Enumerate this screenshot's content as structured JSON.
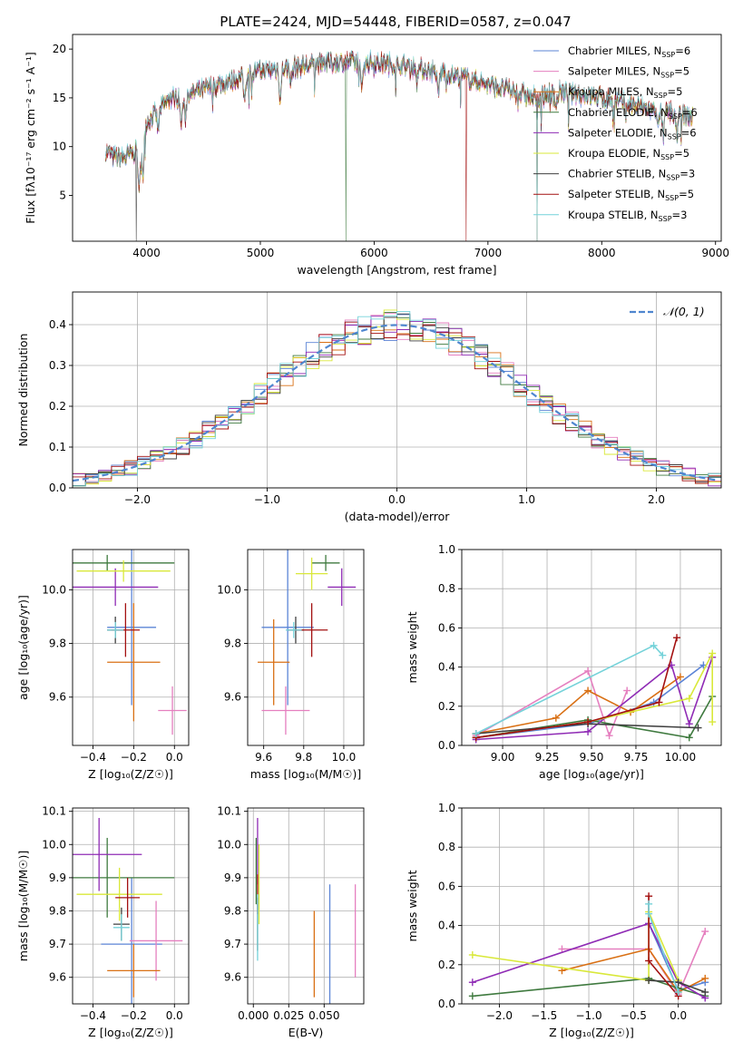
{
  "figure_title": "PLATE=2424, MJD=54448, FIBERID=0587, z=0.047",
  "colors": [
    "#5b84d6",
    "#e57fbf",
    "#d97014",
    "#3f7a3f",
    "#8f2bb5",
    "#d9e83a",
    "#404040",
    "#a31010",
    "#74d2d9"
  ],
  "chart_data": [
    {
      "id": "spectrum",
      "type": "line",
      "title": "",
      "xlabel": "wavelength [Angstrom, rest frame]",
      "ylabel": "Flux [fλ10⁻¹⁷ erg cm⁻² s⁻¹ A⁻¹]",
      "xlim": [
        3350,
        9050
      ],
      "ylim": [
        0.3,
        21.5
      ],
      "xticks": [
        4000,
        5000,
        6000,
        7000,
        8000,
        9000
      ],
      "yticks": [
        5,
        10,
        15,
        20
      ],
      "grid": false,
      "legend_position": "upper-right",
      "continuum_x": [
        3640,
        3700,
        3800,
        3900,
        4000,
        4200,
        4400,
        4600,
        4800,
        5000,
        5200,
        5400,
        5600,
        5800,
        6000,
        6200,
        6400,
        6600,
        6800,
        7000,
        7200,
        7400,
        7600,
        7800,
        8000,
        8200,
        8400,
        8600,
        8800
      ],
      "continuum_y": [
        9.5,
        9.0,
        8.8,
        9.5,
        12.5,
        14.8,
        15.5,
        16.2,
        17.0,
        17.8,
        18.0,
        18.3,
        18.6,
        18.7,
        18.6,
        18.4,
        18.0,
        17.6,
        17.1,
        16.3,
        15.7,
        15.0,
        15.6,
        15.4,
        15.0,
        14.4,
        13.9,
        13.5,
        13.0
      ],
      "series": [
        {
          "name": "Chabrier MILES, N",
          "sub": "SSP",
          "suffix": "=6"
        },
        {
          "name": "Salpeter MILES, N",
          "sub": "SSP",
          "suffix": "=5"
        },
        {
          "name": "Kroupa MILES, N",
          "sub": "SSP",
          "suffix": "=5"
        },
        {
          "name": "Chabrier ELODIE, N",
          "sub": "SSP",
          "suffix": "=6"
        },
        {
          "name": "Salpeter ELODIE, N",
          "sub": "SSP",
          "suffix": "=6"
        },
        {
          "name": "Kroupa ELODIE, N",
          "sub": "SSP",
          "suffix": "=5"
        },
        {
          "name": "Chabrier STELIB, N",
          "sub": "SSP",
          "suffix": "=3"
        },
        {
          "name": "Salpeter STELIB, N",
          "sub": "SSP",
          "suffix": "=5"
        },
        {
          "name": "Kroupa STELIB, N",
          "sub": "SSP",
          "suffix": "=3"
        }
      ]
    },
    {
      "id": "residuals",
      "type": "step",
      "xlabel": "(data-model)/error",
      "ylabel": "Normed distribution",
      "xlim": [
        -2.5,
        2.5
      ],
      "ylim": [
        0,
        0.48
      ],
      "xticks": [
        -2,
        -1,
        0,
        1,
        2
      ],
      "yticks": [
        0.0,
        0.1,
        0.2,
        0.3,
        0.4
      ],
      "grid": true,
      "legend_position": "upper-right",
      "legend": "𝒩(0, 1)",
      "bin_width": 0.1
    },
    {
      "id": "age_vs_Z",
      "type": "errorbar",
      "xlabel": "Z [log₁₀(Z/Z☉)]",
      "ylabel": "age  [log₁₀(age/yr)]",
      "xlim": [
        -0.5,
        0.07
      ],
      "ylim": [
        9.42,
        10.15
      ],
      "xticks": [
        -0.4,
        -0.2,
        0.0
      ],
      "yticks": [
        9.6,
        9.8,
        10.0
      ],
      "grid": true,
      "points": [
        {
          "x": -0.21,
          "xerr": 0.12,
          "y": 9.86,
          "yerr": 0.29
        },
        {
          "x": -0.01,
          "xerr": 0.07,
          "y": 9.55,
          "yerr": 0.09
        },
        {
          "x": -0.2,
          "xerr": 0.13,
          "y": 9.73,
          "yerr": 0.22
        },
        {
          "x": -0.33,
          "xerr": 0.33,
          "y": 10.1,
          "yerr": 0.03
        },
        {
          "x": -0.29,
          "xerr": 0.21,
          "y": 10.01,
          "yerr": 0.07
        },
        {
          "x": -0.25,
          "xerr": 0.23,
          "y": 10.07,
          "yerr": 0.04
        },
        {
          "x": -0.29,
          "xerr": 0.04,
          "y": 9.85,
          "yerr": 0.05
        },
        {
          "x": -0.24,
          "xerr": 0.07,
          "y": 9.85,
          "yerr": 0.1
        },
        {
          "x": -0.29,
          "xerr": 0.04,
          "y": 9.85,
          "yerr": 0.03
        }
      ]
    },
    {
      "id": "age_vs_mass",
      "type": "errorbar",
      "xlabel": "mass [log₁₀(M/M☉)]",
      "ylabel": "",
      "xlim": [
        9.52,
        10.1
      ],
      "ylim": [
        9.42,
        10.15
      ],
      "xticks": [
        9.6,
        9.8,
        10.0
      ],
      "yticks": [
        9.6,
        9.8,
        10.0
      ],
      "grid": true,
      "points": [
        {
          "x": 9.72,
          "xerr": 0.13,
          "y": 9.86,
          "yerr": 0.29
        },
        {
          "x": 9.71,
          "xerr": 0.12,
          "y": 9.55,
          "yerr": 0.09
        },
        {
          "x": 9.65,
          "xerr": 0.08,
          "y": 9.73,
          "yerr": 0.16
        },
        {
          "x": 9.91,
          "xerr": 0.07,
          "y": 10.1,
          "yerr": 0.03
        },
        {
          "x": 9.99,
          "xerr": 0.07,
          "y": 10.01,
          "yerr": 0.07
        },
        {
          "x": 9.84,
          "xerr": 0.08,
          "y": 10.06,
          "yerr": 0.06
        },
        {
          "x": 9.76,
          "xerr": 0.04,
          "y": 9.85,
          "yerr": 0.05
        },
        {
          "x": 9.84,
          "xerr": 0.08,
          "y": 9.85,
          "yerr": 0.1
        },
        {
          "x": 9.75,
          "xerr": 0.04,
          "y": 9.85,
          "yerr": 0.03
        }
      ]
    },
    {
      "id": "weight_vs_age",
      "type": "line",
      "xlabel": "age  [log₁₀(age/yr)]",
      "ylabel": "mass weight",
      "xlim": [
        8.77,
        10.23
      ],
      "ylim": [
        0,
        1
      ],
      "xticks": [
        9.0,
        9.25,
        9.5,
        9.75,
        10.0
      ],
      "yticks": [
        0.0,
        0.2,
        0.4,
        0.6,
        0.8,
        1.0
      ],
      "grid": true,
      "series": [
        {
          "x": [
            8.85,
            9.48,
            9.85,
            10.13
          ],
          "y": [
            0.04,
            0.11,
            0.22,
            0.41
          ]
        },
        {
          "x": [
            8.85,
            9.48,
            9.6,
            9.7
          ],
          "y": [
            0.05,
            0.38,
            0.05,
            0.28
          ]
        },
        {
          "x": [
            8.85,
            9.3,
            9.48,
            9.72,
            10.0
          ],
          "y": [
            0.06,
            0.14,
            0.28,
            0.17,
            0.35
          ]
        },
        {
          "x": [
            8.85,
            9.48,
            10.05,
            10.18
          ],
          "y": [
            0.04,
            0.13,
            0.04,
            0.25
          ]
        },
        {
          "x": [
            8.85,
            9.48,
            9.95,
            10.05,
            10.18
          ],
          "y": [
            0.03,
            0.07,
            0.41,
            0.11,
            0.45
          ]
        },
        {
          "x": [
            8.85,
            9.48,
            10.05,
            10.18,
            10.18
          ],
          "y": [
            0.04,
            0.12,
            0.24,
            0.47,
            0.12
          ]
        },
        {
          "x": [
            8.85,
            9.48,
            10.1
          ],
          "y": [
            0.06,
            0.11,
            0.09
          ]
        },
        {
          "x": [
            8.85,
            9.48,
            9.88,
            9.98
          ],
          "y": [
            0.04,
            0.12,
            0.22,
            0.55
          ]
        },
        {
          "x": [
            8.85,
            9.85,
            9.9
          ],
          "y": [
            0.06,
            0.51,
            0.46
          ]
        }
      ]
    },
    {
      "id": "mass_vs_Z",
      "type": "errorbar",
      "xlabel": "Z [log₁₀(Z/Z☉)]",
      "ylabel": "mass [log₁₀(M/M☉)]",
      "xlim": [
        -0.5,
        0.07
      ],
      "ylim": [
        9.52,
        10.11
      ],
      "xticks": [
        -0.4,
        -0.2,
        0.0
      ],
      "yticks": [
        9.6,
        9.7,
        9.8,
        9.9,
        10.0,
        10.1
      ],
      "grid": true,
      "points": [
        {
          "x": -0.21,
          "xerr": 0.15,
          "y": 9.7,
          "yerr": 0.2
        },
        {
          "x": -0.09,
          "xerr": 0.13,
          "y": 9.71,
          "yerr": 0.12
        },
        {
          "x": -0.2,
          "xerr": 0.13,
          "y": 9.62,
          "yerr": 0.08
        },
        {
          "x": -0.33,
          "xerr": 0.33,
          "y": 9.9,
          "yerr": 0.12
        },
        {
          "x": -0.37,
          "xerr": 0.21,
          "y": 9.97,
          "yerr": 0.11
        },
        {
          "x": -0.27,
          "xerr": 0.21,
          "y": 9.85,
          "yerr": 0.08
        },
        {
          "x": -0.26,
          "xerr": 0.04,
          "y": 9.76,
          "yerr": 0.05
        },
        {
          "x": -0.23,
          "xerr": 0.06,
          "y": 9.84,
          "yerr": 0.06
        },
        {
          "x": -0.26,
          "xerr": 0.04,
          "y": 9.75,
          "yerr": 0.04
        }
      ]
    },
    {
      "id": "mass_vs_ebv",
      "type": "errorbar",
      "xlabel": "E(B-V)",
      "ylabel": "",
      "xlim": [
        -0.004,
        0.078
      ],
      "ylim": [
        9.52,
        10.11
      ],
      "xticks": [
        0.0,
        0.025,
        0.05
      ],
      "yticks": [
        9.6,
        9.7,
        9.8,
        9.9,
        10.0,
        10.1
      ],
      "grid": true,
      "points": [
        {
          "x": 0.054,
          "xerr": 0.0,
          "y": 9.7,
          "yerr": 0.18
        },
        {
          "x": 0.072,
          "xerr": 0.0,
          "y": 9.74,
          "yerr": 0.14
        },
        {
          "x": 0.043,
          "xerr": 0.0,
          "y": 9.67,
          "yerr": 0.13
        },
        {
          "x": 0.002,
          "xerr": 0.0,
          "y": 9.92,
          "yerr": 0.1
        },
        {
          "x": 0.003,
          "xerr": 0.0,
          "y": 9.98,
          "yerr": 0.1
        },
        {
          "x": 0.004,
          "xerr": 0.0,
          "y": 9.88,
          "yerr": 0.12
        },
        {
          "x": 0.003,
          "xerr": 0.0,
          "y": 9.76,
          "yerr": 0.08
        },
        {
          "x": 0.003,
          "xerr": 0.0,
          "y": 9.85,
          "yerr": 0.06
        },
        {
          "x": 0.003,
          "xerr": 0.0,
          "y": 9.75,
          "yerr": 0.1
        }
      ]
    },
    {
      "id": "weight_vs_Z",
      "type": "line",
      "xlabel": "Z [log₁₀(Z/Z☉)]",
      "ylabel": "mass weight",
      "xlim": [
        -2.42,
        0.48
      ],
      "ylim": [
        0,
        1
      ],
      "xticks": [
        -2.0,
        -1.5,
        -1.0,
        -0.5,
        0.0
      ],
      "yticks": [
        0.0,
        0.2,
        0.4,
        0.6,
        0.8,
        1.0
      ],
      "grid": true,
      "series": [
        {
          "x": [
            -0.33,
            0.0,
            0.3
          ],
          "y": [
            0.41,
            0.07,
            0.11
          ]
        },
        {
          "x": [
            -1.3,
            -0.33,
            0.0,
            0.3
          ],
          "y": [
            0.28,
            0.28,
            0.05,
            0.37
          ]
        },
        {
          "x": [
            -1.3,
            -0.33,
            0.0,
            0.3
          ],
          "y": [
            0.17,
            0.28,
            0.06,
            0.13
          ]
        },
        {
          "x": [
            -2.3,
            -0.33,
            0.0,
            0.3
          ],
          "y": [
            0.04,
            0.13,
            0.08,
            0.04
          ]
        },
        {
          "x": [
            -2.3,
            -0.33,
            0.0,
            0.3
          ],
          "y": [
            0.11,
            0.41,
            0.11,
            0.03
          ]
        },
        {
          "x": [
            -2.3,
            -0.33,
            -0.33,
            0.0
          ],
          "y": [
            0.25,
            0.12,
            0.47,
            0.12
          ]
        },
        {
          "x": [
            -0.33,
            0.0,
            0.3
          ],
          "y": [
            0.12,
            0.11,
            0.06
          ]
        },
        {
          "x": [
            -0.33,
            -0.33,
            0.0
          ],
          "y": [
            0.55,
            0.22,
            0.04
          ]
        },
        {
          "x": [
            -0.33,
            -0.33,
            0.0
          ],
          "y": [
            0.51,
            0.46,
            0.06
          ]
        }
      ]
    }
  ]
}
